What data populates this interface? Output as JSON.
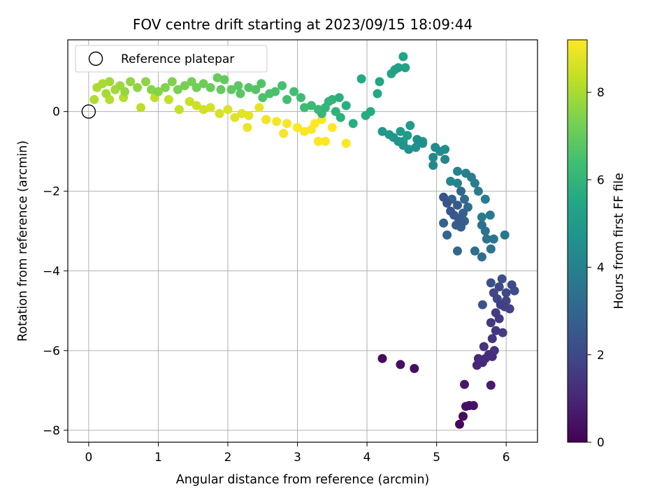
{
  "chart_data": {
    "type": "scatter",
    "title": "FOV centre drift starting at 2023/09/15 18:09:44",
    "xlabel": "Angular distance from reference (arcmin)",
    "ylabel": "Rotation from reference (arcmin)",
    "xlim": [
      -0.3,
      6.45
    ],
    "ylim": [
      -8.3,
      1.8
    ],
    "xticks": [
      0,
      1,
      2,
      3,
      4,
      5,
      6
    ],
    "yticks": [
      -8,
      -6,
      -4,
      -2,
      0
    ],
    "grid": true,
    "legend": {
      "position": "top-left",
      "entries": [
        "Reference platepar"
      ]
    },
    "colorbar": {
      "label": "Hours from first FF file",
      "colormap": "viridis",
      "range": [
        0,
        9.2
      ],
      "ticks": [
        0,
        2,
        4,
        6,
        8
      ]
    },
    "reference_point": {
      "x": 0,
      "y": 0
    },
    "points": [
      [
        4.22,
        -6.2,
        0.3
      ],
      [
        4.48,
        -6.35,
        0.35
      ],
      [
        4.68,
        -6.45,
        0.4
      ],
      [
        5.33,
        -7.85,
        0.2
      ],
      [
        5.38,
        -7.65,
        0.3
      ],
      [
        5.42,
        -7.4,
        0.4
      ],
      [
        5.47,
        -7.38,
        0.45
      ],
      [
        5.53,
        -7.38,
        0.5
      ],
      [
        5.4,
        -6.85,
        0.6
      ],
      [
        5.78,
        -6.87,
        0.7
      ],
      [
        5.58,
        -6.37,
        1.0
      ],
      [
        5.6,
        -6.2,
        1.05
      ],
      [
        5.66,
        -6.3,
        1.1
      ],
      [
        5.7,
        -6.2,
        1.15
      ],
      [
        5.75,
        -6.1,
        1.2
      ],
      [
        5.8,
        -6.15,
        1.25
      ],
      [
        5.83,
        -6.0,
        1.3
      ],
      [
        5.68,
        -5.9,
        1.35
      ],
      [
        5.8,
        -5.7,
        1.4
      ],
      [
        5.85,
        -5.5,
        1.45
      ],
      [
        5.78,
        -5.3,
        1.5
      ],
      [
        5.9,
        -5.2,
        1.55
      ],
      [
        5.95,
        -5.55,
        1.6
      ],
      [
        5.85,
        -5.05,
        1.65
      ],
      [
        5.92,
        -4.85,
        1.7
      ],
      [
        5.98,
        -4.9,
        1.75
      ],
      [
        6.05,
        -4.95,
        1.8
      ],
      [
        6.0,
        -4.75,
        1.85
      ],
      [
        5.87,
        -4.7,
        1.9
      ],
      [
        5.82,
        -4.55,
        1.95
      ],
      [
        5.9,
        -4.4,
        2.0
      ],
      [
        6.0,
        -4.55,
        2.05
      ],
      [
        6.08,
        -4.35,
        2.1
      ],
      [
        6.12,
        -4.5,
        2.15
      ],
      [
        5.94,
        -4.2,
        2.2
      ],
      [
        5.78,
        -4.3,
        2.25
      ],
      [
        5.66,
        -4.85,
        2.3
      ],
      [
        5.1,
        -2.15,
        2.4
      ],
      [
        5.15,
        -2.3,
        2.45
      ],
      [
        5.2,
        -2.5,
        2.5
      ],
      [
        5.25,
        -2.6,
        2.55
      ],
      [
        5.3,
        -2.35,
        2.6
      ],
      [
        5.32,
        -2.7,
        2.65
      ],
      [
        5.28,
        -2.85,
        2.7
      ],
      [
        5.35,
        -2.9,
        2.75
      ],
      [
        5.4,
        -2.75,
        2.8
      ],
      [
        5.38,
        -2.55,
        2.85
      ],
      [
        5.22,
        -2.2,
        2.9
      ],
      [
        5.1,
        -2.8,
        2.95
      ],
      [
        5.15,
        -3.1,
        3.0
      ],
      [
        5.3,
        -3.5,
        3.05
      ],
      [
        5.35,
        -2.0,
        3.1
      ],
      [
        5.4,
        -2.2,
        3.15
      ],
      [
        5.45,
        -2.4,
        3.2
      ],
      [
        5.55,
        -3.5,
        3.3
      ],
      [
        5.65,
        -3.65,
        3.35
      ],
      [
        5.65,
        -2.85,
        3.4
      ],
      [
        5.7,
        -3.0,
        3.45
      ],
      [
        5.72,
        -3.2,
        3.5
      ],
      [
        5.78,
        -3.45,
        3.55
      ],
      [
        5.82,
        -3.2,
        3.6
      ],
      [
        5.98,
        -3.1,
        3.65
      ],
      [
        5.77,
        -2.6,
        3.7
      ],
      [
        5.65,
        -2.65,
        3.75
      ],
      [
        5.7,
        -2.2,
        3.8
      ],
      [
        5.6,
        -2.0,
        3.85
      ],
      [
        5.55,
        -1.8,
        3.9
      ],
      [
        5.5,
        -1.65,
        3.95
      ],
      [
        5.42,
        -1.55,
        4.0
      ],
      [
        5.3,
        -1.5,
        4.05
      ],
      [
        5.3,
        -1.8,
        4.1
      ],
      [
        5.2,
        -1.75,
        4.15
      ],
      [
        5.12,
        -1.2,
        4.2
      ],
      [
        4.95,
        -1.15,
        4.25
      ],
      [
        4.95,
        -1.35,
        4.3
      ],
      [
        4.98,
        -0.9,
        4.35
      ],
      [
        5.05,
        -1.0,
        4.4
      ],
      [
        5.12,
        -0.95,
        4.45
      ],
      [
        4.8,
        -0.8,
        4.5
      ],
      [
        4.72,
        -0.7,
        4.55
      ],
      [
        4.7,
        -0.9,
        4.6
      ],
      [
        4.6,
        -0.95,
        4.65
      ],
      [
        4.52,
        -0.85,
        4.7
      ],
      [
        4.45,
        -0.75,
        4.75
      ],
      [
        4.38,
        -0.65,
        4.8
      ],
      [
        4.32,
        -0.58,
        4.85
      ],
      [
        4.22,
        -0.5,
        4.9
      ],
      [
        4.48,
        -0.5,
        4.95
      ],
      [
        4.58,
        -0.6,
        5.0
      ],
      [
        4.62,
        -0.35,
        5.05
      ],
      [
        4.52,
        -0.75,
        5.1
      ],
      [
        4.8,
        -0.75,
        5.15
      ],
      [
        4.4,
        1.05,
        5.2
      ],
      [
        4.45,
        1.1,
        5.25
      ],
      [
        4.55,
        1.1,
        5.3
      ],
      [
        4.52,
        1.38,
        5.35
      ],
      [
        4.35,
        0.95,
        5.4
      ],
      [
        4.18,
        0.75,
        5.45
      ],
      [
        4.15,
        0.45,
        5.5
      ],
      [
        3.92,
        0.82,
        5.55
      ],
      [
        4.05,
        0.0,
        5.6
      ],
      [
        3.98,
        -0.1,
        5.65
      ],
      [
        3.8,
        -0.3,
        5.7
      ],
      [
        3.7,
        0.15,
        5.75
      ],
      [
        3.6,
        0.35,
        5.8
      ],
      [
        3.62,
        -0.15,
        5.85
      ],
      [
        3.55,
        0.0,
        5.9
      ],
      [
        3.5,
        0.3,
        5.95
      ],
      [
        3.45,
        0.25,
        6.0
      ],
      [
        3.4,
        0.1,
        6.05
      ],
      [
        3.35,
        -0.05,
        6.1
      ],
      [
        3.3,
        0.05,
        6.15
      ],
      [
        3.2,
        0.15,
        6.2
      ],
      [
        3.1,
        0.1,
        6.25
      ],
      [
        3.05,
        0.35,
        6.3
      ],
      [
        2.95,
        0.5,
        6.35
      ],
      [
        2.85,
        0.3,
        6.4
      ],
      [
        2.78,
        0.65,
        6.45
      ],
      [
        2.68,
        0.5,
        6.5
      ],
      [
        2.6,
        0.45,
        6.55
      ],
      [
        2.5,
        0.35,
        6.6
      ],
      [
        2.48,
        0.7,
        6.65
      ],
      [
        2.4,
        0.55,
        6.7
      ],
      [
        2.3,
        0.6,
        6.75
      ],
      [
        2.18,
        0.45,
        6.8
      ],
      [
        2.15,
        0.65,
        6.85
      ],
      [
        2.05,
        0.55,
        6.9
      ],
      [
        1.95,
        0.8,
        6.95
      ],
      [
        1.9,
        0.55,
        7.0
      ],
      [
        1.85,
        0.85,
        7.05
      ],
      [
        1.75,
        0.6,
        7.1
      ],
      [
        1.65,
        0.7,
        7.15
      ],
      [
        1.55,
        0.6,
        7.2
      ],
      [
        1.48,
        0.75,
        7.25
      ],
      [
        1.38,
        0.65,
        7.3
      ],
      [
        1.28,
        0.55,
        7.35
      ],
      [
        1.2,
        0.75,
        7.4
      ],
      [
        1.1,
        0.6,
        7.45
      ],
      [
        1.0,
        0.5,
        7.5
      ],
      [
        0.9,
        0.55,
        7.55
      ],
      [
        0.82,
        0.75,
        7.6
      ],
      [
        0.7,
        0.6,
        7.65
      ],
      [
        0.6,
        0.75,
        7.7
      ],
      [
        0.52,
        0.5,
        7.75
      ],
      [
        0.45,
        0.65,
        7.8
      ],
      [
        0.38,
        0.55,
        7.85
      ],
      [
        0.3,
        0.75,
        7.9
      ],
      [
        0.25,
        0.45,
        7.95
      ],
      [
        0.2,
        0.7,
        8.0
      ],
      [
        0.12,
        0.6,
        8.05
      ],
      [
        0.08,
        0.3,
        8.1
      ],
      [
        0.3,
        0.3,
        8.15
      ],
      [
        0.5,
        0.35,
        8.2
      ],
      [
        0.75,
        0.1,
        8.25
      ],
      [
        0.95,
        0.35,
        8.3
      ],
      [
        1.15,
        0.3,
        8.35
      ],
      [
        1.3,
        0.05,
        8.4
      ],
      [
        1.45,
        0.25,
        8.45
      ],
      [
        1.55,
        0.15,
        8.5
      ],
      [
        1.65,
        0.05,
        8.55
      ],
      [
        1.75,
        0.1,
        8.6
      ],
      [
        1.88,
        -0.05,
        8.65
      ],
      [
        2.0,
        0.05,
        8.7
      ],
      [
        2.1,
        -0.15,
        8.75
      ],
      [
        2.2,
        -0.05,
        8.8
      ],
      [
        2.3,
        -0.1,
        8.85
      ],
      [
        2.45,
        0.1,
        8.9
      ],
      [
        2.28,
        -0.4,
        8.95
      ],
      [
        2.55,
        -0.2,
        9.0
      ],
      [
        2.7,
        -0.25,
        9.05
      ],
      [
        2.85,
        -0.3,
        9.1
      ],
      [
        2.8,
        -0.55,
        9.1
      ],
      [
        3.0,
        -0.4,
        9.15
      ],
      [
        3.1,
        -0.5,
        9.15
      ],
      [
        3.2,
        -0.45,
        9.15
      ],
      [
        3.25,
        -0.3,
        9.2
      ],
      [
        3.35,
        -0.2,
        9.2
      ],
      [
        3.3,
        -0.75,
        9.2
      ],
      [
        3.4,
        -0.75,
        9.2
      ],
      [
        3.5,
        -0.4,
        9.2
      ],
      [
        3.7,
        -0.8,
        9.2
      ]
    ]
  }
}
